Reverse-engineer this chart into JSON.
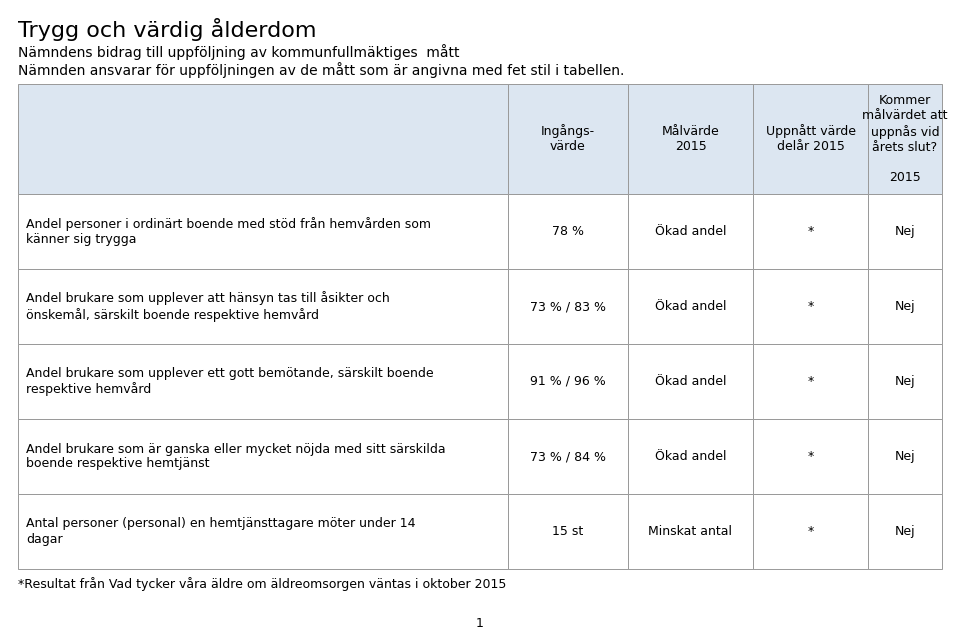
{
  "title": "Trygg och värdig ålderdom",
  "subtitle1": "Nämndens bidrag till uppföljning av kommunfullmäktiges  mått",
  "subtitle2": "Nämnden ansvarar för uppföljningen av de mått som är angivna med fet stil i tabellen.",
  "header_bg": "#dce6f1",
  "col_headers": [
    "Ingångs-\nvärde",
    "Målvärde\n2015",
    "Uppnått värde\ndelår 2015",
    "Kommer\nmålvärdet att\nuppnås vid\nårets slut?\n\n2015"
  ],
  "rows": [
    {
      "label": "Andel personer i ordinärt boende med stöd från hemvården som\nkänner sig trygga",
      "bold": false,
      "values": [
        "78 %",
        "Ökad andel",
        "*",
        "Nej"
      ]
    },
    {
      "label": "Andel brukare som upplever att hänsyn tas till åsikter och\nönskemål, särskilt boende respektive hemvård",
      "bold": false,
      "values": [
        "73 % / 83 %",
        "Ökad andel",
        "*",
        "Nej"
      ]
    },
    {
      "label": "Andel brukare som upplever ett gott bemötande, särskilt boende\nrespektive hemvård",
      "bold": false,
      "values": [
        "91 % / 96 %",
        "Ökad andel",
        "*",
        "Nej"
      ]
    },
    {
      "label": "Andel brukare som är ganska eller mycket nöjda med sitt särskilda\nboende respektive hemtjänst",
      "bold": false,
      "values": [
        "73 % / 84 %",
        "Ökad andel",
        "*",
        "Nej"
      ]
    },
    {
      "label": "Antal personer (personal) en hemtjänsttagare möter under 14\ndagar",
      "bold": false,
      "values": [
        "15 st",
        "Minskat antal",
        "*",
        "Nej"
      ]
    }
  ],
  "footnote": "*Resultat från Vad tycker våra äldre om äldreomsorgen väntas i oktober 2015",
  "page_number": "1",
  "title_fontsize": 16,
  "subtitle_fontsize": 10,
  "header_fontsize": 9,
  "cell_fontsize": 9,
  "footnote_fontsize": 9,
  "border_color": "#999999",
  "text_color": "#000000"
}
